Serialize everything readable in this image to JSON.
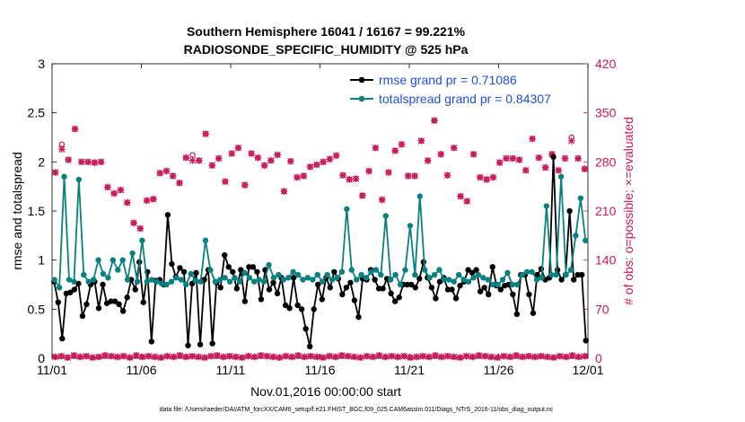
{
  "colors": {
    "rmse": "#000000",
    "spread": "#0a8080",
    "obs": "#c8185a",
    "legend_text": "#1f4fd8"
  },
  "chart_data": {
    "type": "line",
    "title": [
      "Southern Hemisphere 16041 / 16167 = 99.221%",
      "RADIOSONDE_SPECIFIC_HUMIDITY @ 525 hPa"
    ],
    "xlabel": "Nov.01,2016 00:00:00 start",
    "ylabel_left": "rmse and totalspread",
    "ylabel_right": "# of obs: o=possible; ×=evaluated",
    "footer": "data file: /Users/raeder/DAI/ATM_forcXX/CAM6_setup/f.e21.FHIST_BGC.f09_025.CAM6assim.011/Diags_NTrS_2016-11/obs_diag_output.nc",
    "xlim": [
      0,
      30
    ],
    "ylim_left": [
      0,
      3
    ],
    "ylim_right": [
      0,
      420
    ],
    "x_ticks": [
      0,
      5,
      10,
      15,
      20,
      25,
      30
    ],
    "x_tick_labels": [
      "11/01",
      "11/06",
      "11/11",
      "11/16",
      "11/21",
      "11/26",
      "12/01"
    ],
    "y_ticks_left": [
      0,
      0.5,
      1,
      1.5,
      2,
      2.5,
      3
    ],
    "y_tick_labels_left": [
      "0",
      "0.5",
      "1",
      "1.5",
      "2",
      "2.5",
      "3"
    ],
    "y_ticks_right": [
      0,
      70,
      140,
      210,
      280,
      350,
      420
    ],
    "y_tick_labels_right": [
      "0",
      "70",
      "140",
      "210",
      "280",
      "350",
      "420"
    ],
    "legend": {
      "placement": "top-right",
      "entries": [
        "rmse grand pr = 0.71086",
        "totalspread grand pr = 0.84307"
      ]
    },
    "series": [
      {
        "name": "rmse grand pr = 0.71086",
        "marker": "dot",
        "axis": "left",
        "values": [
          0.78,
          0.57,
          0.2,
          0.66,
          0.67,
          0.7,
          0.76,
          0.43,
          0.55,
          0.75,
          0.78,
          0.51,
          0.75,
          0.56,
          0.58,
          0.58,
          0.55,
          0.48,
          0.62,
          0.8,
          0.7,
          0.98,
          0.57,
          0.88,
          0.17,
          0.79,
          0.8,
          0.75,
          1.46,
          0.96,
          0.83,
          0.92,
          0.88,
          0.13,
          0.76,
          0.87,
          0.14,
          0.8,
          0.9,
          0.15,
          0.77,
          0.72,
          1.05,
          0.93,
          0.88,
          0.71,
          0.9,
          0.58,
          0.93,
          0.93,
          0.88,
          0.6,
          0.9,
          0.7,
          0.77,
          0.66,
          0.82,
          0.54,
          0.51,
          0.82,
          0.54,
          0.5,
          0.3,
          0.12,
          0.5,
          0.75,
          0.6,
          0.82,
          0.72,
          0.88,
          0.81,
          0.65,
          0.72,
          0.77,
          0.59,
          0.42,
          0.81,
          0.8,
          0.9,
          0.8,
          0.71,
          0.71,
          0.81,
          0.66,
          0.58,
          0.62,
          0.75,
          0.75,
          0.75,
          0.72,
          0.81,
          0.98,
          0.82,
          0.72,
          0.61,
          0.78,
          0.82,
          0.7,
          0.7,
          0.61,
          0.74,
          0.78,
          0.9,
          0.87,
          0.9,
          0.68,
          0.72,
          0.65,
          0.93,
          0.74,
          0.7,
          0.74,
          0.75,
          0.65,
          0.45,
          0.85,
          0.85,
          0.65,
          0.46,
          0.85,
          0.91,
          0.8,
          0.82,
          2.05,
          0.9,
          0.8,
          0.85,
          1.5,
          0.8,
          0.85,
          0.85,
          0.18
        ]
      },
      {
        "name": "totalspread grand pr = 0.84307",
        "marker": "dot",
        "axis": "left",
        "values": [
          0.8,
          0.72,
          1.85,
          0.8,
          0.78,
          1.82,
          0.85,
          0.78,
          0.8,
          1.0,
          0.86,
          0.82,
          1.0,
          0.9,
          1.0,
          0.8,
          1.07,
          0.78,
          1.2,
          0.78,
          0.8,
          0.78,
          0.76,
          0.75,
          0.78,
          0.82,
          0.8,
          0.75,
          0.86,
          0.79,
          0.78,
          1.2,
          0.9,
          0.78,
          0.8,
          0.82,
          0.78,
          0.82,
          0.78,
          0.87,
          0.82,
          0.78,
          0.8,
          0.78,
          0.95,
          0.82,
          0.85,
          0.8,
          0.82,
          0.88,
          0.85,
          0.8,
          0.82,
          0.8,
          0.85,
          0.78,
          0.85,
          0.8,
          0.82,
          0.88,
          1.52,
          0.9,
          0.8,
          0.85,
          0.82,
          0.88,
          0.9,
          0.85,
          1.45,
          0.8,
          0.85,
          0.75,
          0.9,
          1.35,
          0.85,
          1.65,
          0.9,
          0.82,
          0.85,
          0.9,
          0.8,
          0.8,
          0.78,
          0.85,
          0.8,
          0.78,
          0.82,
          0.85,
          0.82,
          0.8,
          0.75,
          0.75,
          0.8,
          0.87,
          0.75,
          0.75,
          0.85,
          0.88,
          0.88,
          0.8,
          0.82,
          1.55,
          0.85,
          0.85,
          1.85,
          0.85,
          0.9,
          1.25,
          1.63,
          1.2
        ]
      },
      {
        "name": "possible",
        "marker": "circle",
        "axis": "right",
        "values": [
          265,
          305,
          283,
          327,
          280,
          280,
          279,
          280,
          244,
          235,
          240,
          222,
          193,
          185,
          225,
          227,
          264,
          267,
          260,
          250,
          286,
          290,
          282,
          320,
          275,
          285,
          252,
          292,
          300,
          247,
          292,
          286,
          275,
          282,
          290,
          238,
          281,
          258,
          260,
          273,
          276,
          280,
          284,
          289,
          261,
          255,
          256,
          232,
          267,
          300,
          226,
          265,
          296,
          305,
          260,
          260,
          310,
          282,
          339,
          291,
          261,
          300,
          231,
          224,
          291,
          258,
          255,
          258,
          279,
          285,
          285,
          283,
          268,
          313,
          286,
          272,
          291,
          268,
          285,
          315,
          285,
          270
        ]
      },
      {
        "name": "evaluated",
        "marker": "x",
        "axis": "right",
        "values": [
          265,
          298,
          283,
          327,
          280,
          280,
          279,
          280,
          244,
          235,
          240,
          222,
          193,
          185,
          225,
          227,
          264,
          267,
          260,
          250,
          286,
          282,
          282,
          320,
          275,
          285,
          252,
          292,
          300,
          247,
          292,
          286,
          275,
          282,
          290,
          238,
          281,
          258,
          260,
          273,
          276,
          280,
          284,
          289,
          261,
          255,
          256,
          232,
          267,
          300,
          226,
          265,
          296,
          305,
          260,
          260,
          310,
          282,
          339,
          291,
          261,
          300,
          231,
          224,
          291,
          258,
          255,
          258,
          279,
          285,
          285,
          283,
          268,
          313,
          286,
          272,
          291,
          268,
          285,
          310,
          285,
          270
        ]
      },
      {
        "name": "possible_low",
        "marker": "circle",
        "axis": "right",
        "values": [
          2,
          3,
          1,
          4,
          2,
          3,
          1,
          2,
          4,
          3,
          2,
          3,
          1,
          4,
          2,
          3,
          2,
          1,
          3,
          2,
          4,
          2,
          3,
          2,
          1,
          3,
          4,
          2,
          3,
          2,
          1,
          3,
          2,
          4,
          3,
          2,
          1,
          3,
          2,
          4,
          2,
          3,
          2,
          1,
          3,
          2,
          4,
          3,
          2,
          1,
          3,
          2,
          4,
          2,
          3,
          2,
          3,
          1,
          2,
          3,
          2,
          4,
          2,
          3,
          2,
          1,
          3,
          2,
          4,
          3,
          2,
          1,
          3,
          2,
          4,
          2,
          3,
          2,
          3,
          2,
          1,
          3,
          2,
          4,
          2,
          3
        ]
      },
      {
        "name": "evaluated_low",
        "marker": "x",
        "axis": "right",
        "values": [
          2,
          3,
          1,
          4,
          2,
          3,
          1,
          2,
          4,
          3,
          2,
          3,
          1,
          4,
          2,
          3,
          2,
          1,
          3,
          2,
          4,
          2,
          3,
          2,
          1,
          3,
          4,
          2,
          3,
          2,
          1,
          3,
          2,
          4,
          3,
          2,
          1,
          3,
          2,
          4,
          2,
          3,
          2,
          1,
          3,
          2,
          4,
          3,
          2,
          1,
          3,
          2,
          4,
          2,
          3,
          2,
          3,
          1,
          2,
          3,
          2,
          4,
          2,
          3,
          2,
          1,
          3,
          2,
          4,
          3,
          2,
          1,
          3,
          2,
          4,
          2,
          3,
          2,
          3,
          2,
          1,
          3,
          2,
          4,
          2,
          3
        ]
      }
    ]
  }
}
